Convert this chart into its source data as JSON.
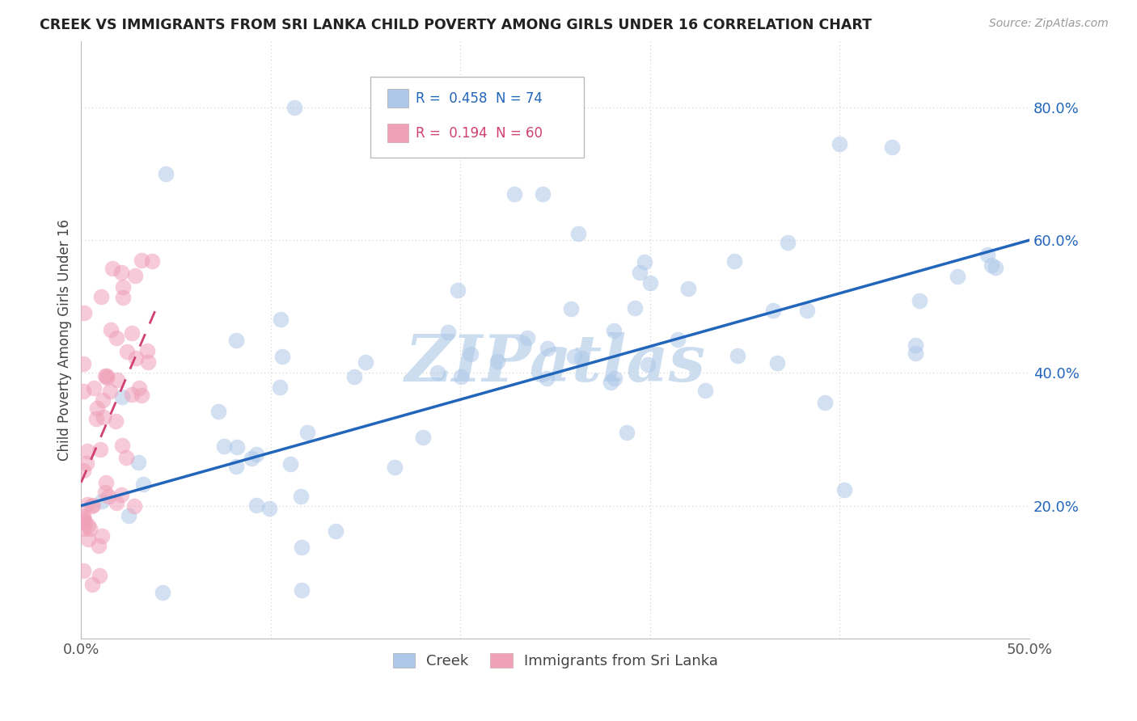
{
  "title": "CREEK VS IMMIGRANTS FROM SRI LANKA CHILD POVERTY AMONG GIRLS UNDER 16 CORRELATION CHART",
  "source": "Source: ZipAtlas.com",
  "ylabel": "Child Poverty Among Girls Under 16",
  "xlim": [
    0.0,
    0.5
  ],
  "ylim": [
    0.0,
    0.9
  ],
  "xtick_positions": [
    0.0,
    0.1,
    0.2,
    0.3,
    0.4,
    0.5
  ],
  "xtick_labels": [
    "0.0%",
    "",
    "",
    "",
    "",
    "50.0%"
  ],
  "ytick_positions": [
    0.0,
    0.2,
    0.4,
    0.6,
    0.8
  ],
  "ytick_labels": [
    "",
    "20.0%",
    "40.0%",
    "60.0%",
    "80.0%"
  ],
  "creek_R": 0.458,
  "creek_N": 74,
  "srilanka_R": 0.194,
  "srilanka_N": 60,
  "creek_color": "#adc8e8",
  "creek_line_color": "#2266bb",
  "srilanka_color": "#f0a0b8",
  "srilanka_line_color": "#d04070",
  "watermark": "ZIPatlas",
  "watermark_color": "#ccddef",
  "creek_line_x": [
    0.0,
    0.5
  ],
  "creek_line_y": [
    0.2,
    0.6
  ],
  "sri_line_x": [
    0.0,
    0.04
  ],
  "sri_line_y": [
    0.235,
    0.5
  ]
}
